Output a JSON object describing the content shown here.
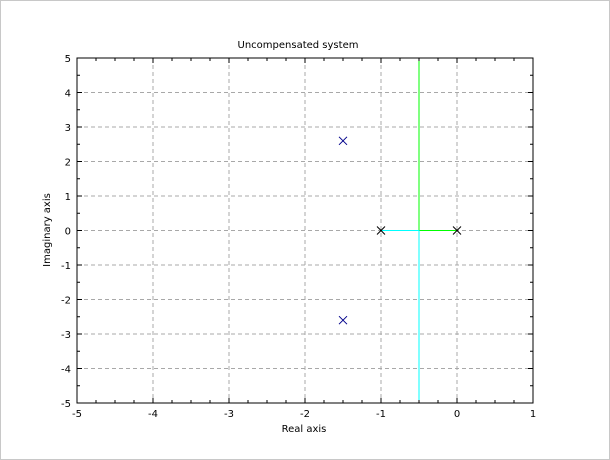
{
  "chart_data": {
    "type": "scatter",
    "title": "Uncompensated system",
    "xlabel": "Real axis",
    "ylabel": "Imaginary axis",
    "xlim": [
      -5,
      1
    ],
    "ylim": [
      -5,
      5
    ],
    "xticks": [
      "-5",
      "-4",
      "-3",
      "-2",
      "-1",
      "0",
      "1"
    ],
    "yticks": [
      "5",
      "4",
      "3",
      "2",
      "1",
      "0",
      "-1",
      "-2",
      "-3",
      "-4",
      "-5"
    ],
    "grid": true,
    "colors": {
      "axes": "#000000",
      "grid": "#a8a8a8",
      "pole_marker_open_loop": "#000000",
      "pole_marker_closed_loop": "#00008b",
      "branch_1": "#00ff00",
      "branch_2": "#00ffff"
    },
    "open_loop_poles": [
      {
        "x": -1,
        "y": 0
      },
      {
        "x": 0,
        "y": 0
      }
    ],
    "closed_loop_poles": [
      {
        "x": -1.5,
        "y": 2.6
      },
      {
        "x": -1.5,
        "y": -2.6
      }
    ],
    "branches": [
      {
        "color": "#00ff00",
        "points": [
          [
            0,
            0
          ],
          [
            -0.5,
            0
          ],
          [
            -0.5,
            5
          ]
        ]
      },
      {
        "color": "#00ffff",
        "points": [
          [
            -1,
            0
          ],
          [
            -0.5,
            0
          ],
          [
            -0.5,
            -5
          ]
        ]
      }
    ]
  }
}
